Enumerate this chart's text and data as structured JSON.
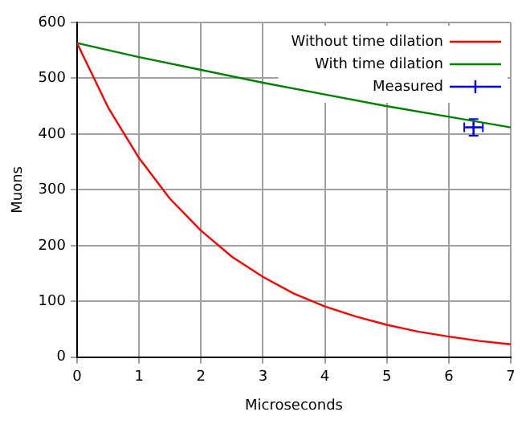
{
  "chart_data": {
    "type": "line",
    "xlabel": "Microseconds",
    "ylabel": "Muons",
    "xlim": [
      0,
      7
    ],
    "xticks": [
      0,
      1,
      2,
      3,
      4,
      5,
      6,
      7
    ],
    "ylim": [
      0,
      600
    ],
    "yticks": [
      0,
      100,
      200,
      300,
      400,
      500,
      600
    ],
    "grid": true,
    "legend": "top right",
    "marker": "none",
    "line_style": "solid",
    "series": [
      {
        "name": "Without time dilation",
        "color": "#ff0000",
        "x": [
          0,
          0.5,
          1,
          1.5,
          2,
          2.5,
          3,
          3.5,
          4,
          4.5,
          5,
          5.5,
          6,
          6.5,
          7
        ],
        "values": [
          563,
          448,
          357,
          284,
          227,
          180,
          144,
          114,
          91,
          73,
          58,
          46,
          37,
          29,
          23
        ]
      },
      {
        "name": "With time dilation",
        "color": "#008000",
        "x": [
          0,
          1,
          2,
          3,
          4,
          5,
          6,
          7
        ],
        "values": [
          563,
          538,
          515,
          492,
          471,
          450,
          431,
          412
        ]
      },
      {
        "name": "Measured",
        "type": "scatter",
        "marker": "cross",
        "color": "#0000ff",
        "x": [
          6.4
        ],
        "values": [
          412
        ],
        "errors": [
          15
        ],
        "xerrors": [
          0.15
        ]
      }
    ]
  }
}
